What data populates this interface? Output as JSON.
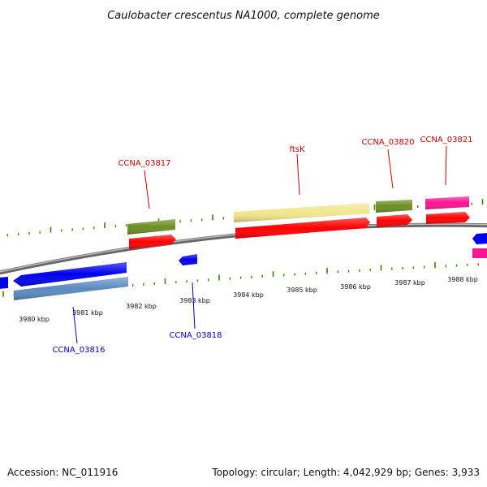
{
  "title": "Caulobacter crescentus NA1000, complete genome",
  "footer": {
    "accession": "Accession: NC_011916",
    "summary": "Topology: circular; Length: 4,042,929 bp; Genes: 3,933"
  },
  "colors": {
    "backbone": "#808080",
    "tick": "#2e8b00",
    "forward_label": "#cc0000",
    "reverse_label": "#0000cc",
    "cds": "#ff0000",
    "gene_blue": "#0000ee",
    "gene_steel": "#5a8ac0",
    "gene_olive": "#6b8e23",
    "gene_khaki": "#f0e68c",
    "gene_magenta": "#ff1493"
  },
  "tick_labels": [
    {
      "label": "3980 kbp"
    },
    {
      "label": "3981 kbp"
    },
    {
      "label": "3982 kbp"
    },
    {
      "label": "3983 kbp"
    },
    {
      "label": "3984 kbp"
    },
    {
      "label": "3985 kbp"
    },
    {
      "label": "3986 kbp"
    },
    {
      "label": "3987 kbp"
    },
    {
      "label": "3988 kbp"
    }
  ],
  "gene_labels": [
    {
      "label": "CCNA_03816",
      "strand": "reverse"
    },
    {
      "label": "CCNA_03817",
      "strand": "forward"
    },
    {
      "label": "CCNA_03818",
      "strand": "reverse"
    },
    {
      "label": "ftsK",
      "strand": "forward"
    },
    {
      "label": "CCNA_03820",
      "strand": "forward"
    },
    {
      "label": "CCNA_03821",
      "strand": "forward"
    }
  ],
  "features": [
    {
      "name": "CCNA_03816",
      "strand": "reverse",
      "type": "gene",
      "color": "gene_blue"
    },
    {
      "name": "CCNA_03816",
      "strand": "reverse",
      "type": "cds",
      "color": "gene_steel"
    },
    {
      "name": "CCNA_03817",
      "strand": "forward",
      "type": "gene",
      "color": "gene_olive"
    },
    {
      "name": "CCNA_03817",
      "strand": "forward",
      "type": "cds",
      "color": "cds"
    },
    {
      "name": "CCNA_03818",
      "strand": "reverse",
      "type": "gene",
      "color": "gene_blue"
    },
    {
      "name": "ftsK",
      "strand": "forward",
      "type": "gene",
      "color": "gene_khaki"
    },
    {
      "name": "ftsK",
      "strand": "forward",
      "type": "cds",
      "color": "cds"
    },
    {
      "name": "CCNA_03820",
      "strand": "forward",
      "type": "gene",
      "color": "gene_olive"
    },
    {
      "name": "CCNA_03820",
      "strand": "forward",
      "type": "cds",
      "color": "cds"
    },
    {
      "name": "CCNA_03821",
      "strand": "forward",
      "type": "gene",
      "color": "gene_magenta"
    },
    {
      "name": "CCNA_03821",
      "strand": "forward",
      "type": "cds",
      "color": "cds"
    }
  ]
}
